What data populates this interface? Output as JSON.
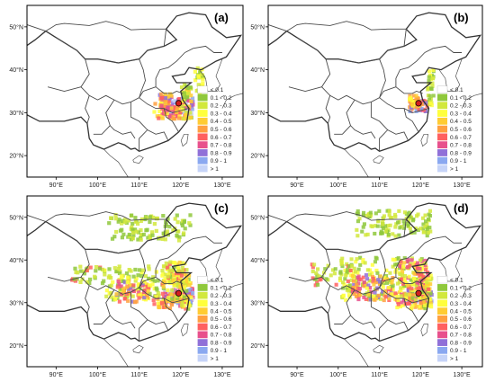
{
  "panels": [
    {
      "id": "a",
      "label": "(a)",
      "extent": "small"
    },
    {
      "id": "b",
      "label": "(b)",
      "extent": "smallest"
    },
    {
      "id": "c",
      "label": "(c)",
      "extent": "large"
    },
    {
      "id": "d",
      "label": "(d)",
      "extent": "largest"
    }
  ],
  "axes": {
    "lon_ticks": [
      "90°E",
      "100°E",
      "110°E",
      "120°E",
      "130°E"
    ],
    "lat_ticks": [
      "50°N",
      "40°N",
      "30°N",
      "20°N"
    ]
  },
  "legend": {
    "entries": [
      {
        "label": "< 0.1",
        "color": "#ffffff"
      },
      {
        "label": "0.1 - 0.2",
        "color": "#8fc83c"
      },
      {
        "label": "0.2 - 0.3",
        "color": "#d2e83c"
      },
      {
        "label": "0.3 - 0.4",
        "color": "#ffff3c"
      },
      {
        "label": "0.4 - 0.5",
        "color": "#ffcc33"
      },
      {
        "label": "0.5 - 0.6",
        "color": "#ffa040"
      },
      {
        "label": "0.6 - 0.7",
        "color": "#ff6060"
      },
      {
        "label": "0.7 - 0.8",
        "color": "#e8508c"
      },
      {
        "label": "0.8 - 0.9",
        "color": "#9070d8"
      },
      {
        "label": "0.9 - 1",
        "color": "#8aa8f0"
      },
      {
        "label": "> 1",
        "color": "#c6d4f8"
      }
    ]
  },
  "source_marker": {
    "color": "#d42020",
    "lon": 119.5,
    "lat": 32.2
  }
}
